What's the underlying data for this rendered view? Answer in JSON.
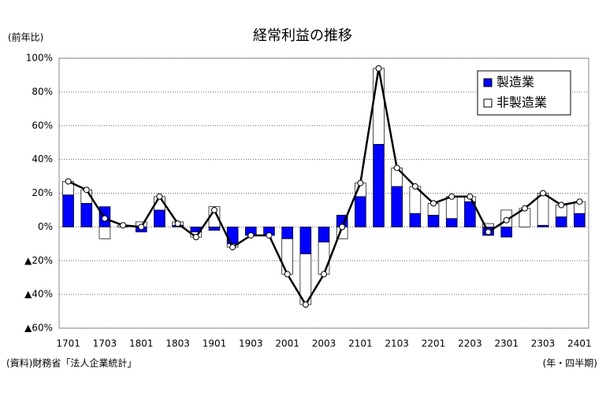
{
  "chart_data": {
    "type": "bar_line",
    "title": "経常利益の推移",
    "y_axis_label": "(前年比)",
    "x_axis_label": "(年・四半期)",
    "source": "(資料)財務省「法人企業統計」",
    "categories": [
      "1701",
      null,
      "1703",
      null,
      "1801",
      null,
      "1803",
      null,
      "1901",
      null,
      "1903",
      null,
      "2001",
      null,
      "2003",
      null,
      "2101",
      null,
      "2103",
      null,
      "2201",
      null,
      "2203",
      null,
      "2301",
      null,
      "2303",
      null,
      "2401"
    ],
    "series": [
      {
        "name": "製造業",
        "kind": "bar",
        "color": "#0000ff",
        "values": [
          19,
          14,
          12,
          0,
          -3,
          10,
          1,
          -3,
          -2,
          -10,
          -5,
          -5,
          -7,
          -16,
          -9,
          7,
          18,
          49,
          24,
          8,
          7,
          5,
          15,
          -5,
          -6,
          0,
          1,
          6,
          8
        ]
      },
      {
        "name": "非製造業",
        "kind": "bar",
        "color": "#ffffff",
        "values": [
          8,
          8,
          -7,
          1,
          3,
          8,
          2,
          -3,
          12,
          -2,
          0,
          0,
          -21,
          -30,
          -19,
          -7,
          8,
          45,
          11,
          16,
          7,
          13,
          3,
          2,
          10,
          11,
          19,
          7,
          7
        ]
      },
      {
        "kind": "line",
        "color": "#000000",
        "values": [
          27,
          22,
          5,
          1,
          0,
          18,
          2,
          -6,
          10,
          -12,
          -5,
          -5,
          -28,
          -46,
          -28,
          0,
          26,
          94,
          35,
          24,
          14,
          18,
          18,
          -3,
          4,
          11,
          20,
          13,
          15
        ]
      }
    ],
    "ylim": [
      -60,
      100
    ],
    "yticks": [
      {
        "value": -60,
        "label": "▲60%"
      },
      {
        "value": -40,
        "label": "▲40%"
      },
      {
        "value": -20,
        "label": "▲20%"
      },
      {
        "value": 0,
        "label": "0%"
      },
      {
        "value": 20,
        "label": "20%"
      },
      {
        "value": 40,
        "label": "40%"
      },
      {
        "value": 60,
        "label": "60%"
      },
      {
        "value": 80,
        "label": "80%"
      },
      {
        "value": 100,
        "label": "100%"
      }
    ],
    "grid": true,
    "legend": "upper right"
  }
}
